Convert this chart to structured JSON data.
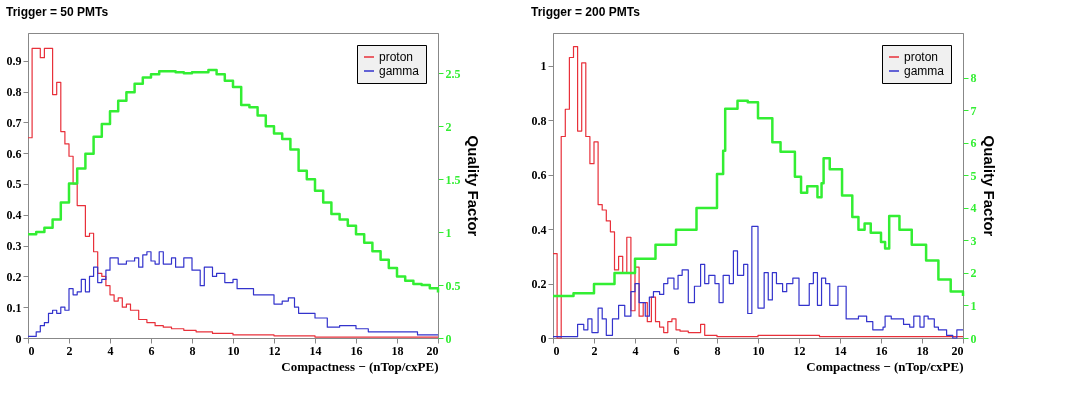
{
  "chart_data": [
    {
      "type": "step",
      "title": "Trigger =  50 PMTs",
      "xlabel": "Compactness − (nTop/cxPE)",
      "y2label": "Quality Factor",
      "legend": "top right",
      "xlim": [
        0,
        20
      ],
      "xticks": [
        0,
        2,
        4,
        6,
        8,
        10,
        12,
        14,
        16,
        18,
        20
      ],
      "ylim": [
        0,
        0.99
      ],
      "yticks": [
        0,
        0.1,
        0.2,
        0.3,
        0.4,
        0.5,
        0.6,
        0.7,
        0.8,
        0.9
      ],
      "y2lim": [
        0,
        2.88
      ],
      "y2ticks": [
        0,
        0.5,
        1,
        1.5,
        2,
        2.5
      ],
      "series": [
        {
          "name": "proton",
          "color": "#e8303a",
          "x": [
            0,
            0.2,
            0.6,
            0.8,
            1.2,
            1.4,
            1.6,
            1.8,
            2.0,
            2.2,
            2.4,
            2.8,
            3.0,
            3.2,
            3.4,
            3.6,
            3.8,
            4.0,
            4.2,
            4.4,
            4.6,
            4.8,
            5.0,
            5.4,
            5.8,
            6.2,
            6.6,
            7.0,
            7.6,
            8.2,
            9.0,
            10.0,
            12.0,
            14.0,
            20
          ],
          "values": [
            0.65,
            0.94,
            0.91,
            0.94,
            0.79,
            0.83,
            0.67,
            0.63,
            0.59,
            0.5,
            0.43,
            0.33,
            0.34,
            0.28,
            0.21,
            0.2,
            0.17,
            0.14,
            0.12,
            0.13,
            0.1,
            0.11,
            0.09,
            0.06,
            0.05,
            0.04,
            0.035,
            0.03,
            0.025,
            0.02,
            0.015,
            0.01,
            0.007,
            0.003,
            0.003
          ]
        },
        {
          "name": "gamma",
          "color": "#3333cc",
          "x": [
            0,
            0.4,
            0.6,
            0.8,
            1.0,
            1.2,
            1.4,
            1.6,
            1.8,
            2.0,
            2.2,
            2.4,
            2.6,
            2.8,
            3.0,
            3.2,
            3.4,
            3.6,
            3.8,
            4.0,
            4.4,
            4.8,
            5.2,
            5.4,
            5.6,
            5.8,
            6.0,
            6.2,
            6.4,
            6.6,
            7.0,
            7.2,
            7.6,
            8.0,
            8.4,
            8.6,
            9.0,
            9.2,
            9.6,
            10.0,
            10.2,
            11.0,
            12.0,
            12.4,
            12.7,
            13.0,
            13.2,
            14.0,
            14.6,
            15.2,
            16.0,
            16.6,
            18.0,
            19.0,
            20
          ],
          "values": [
            0.005,
            0.02,
            0.04,
            0.05,
            0.08,
            0.09,
            0.08,
            0.1,
            0.09,
            0.16,
            0.14,
            0.15,
            0.19,
            0.15,
            0.2,
            0.23,
            0.18,
            0.19,
            0.22,
            0.26,
            0.24,
            0.25,
            0.26,
            0.23,
            0.27,
            0.28,
            0.25,
            0.24,
            0.28,
            0.24,
            0.26,
            0.23,
            0.26,
            0.22,
            0.17,
            0.23,
            0.2,
            0.21,
            0.18,
            0.19,
            0.16,
            0.14,
            0.11,
            0.12,
            0.13,
            0.1,
            0.08,
            0.065,
            0.035,
            0.04,
            0.03,
            0.02,
            0.02,
            0.01,
            0.01
          ]
        },
        {
          "color": "#33ee33",
          "axis": "y2",
          "x": [
            0,
            0.4,
            0.8,
            1.2,
            1.6,
            2.0,
            2.4,
            2.8,
            3.2,
            3.6,
            4.0,
            4.4,
            4.8,
            5.2,
            5.6,
            6.0,
            6.4,
            6.8,
            7.2,
            7.6,
            8.0,
            8.4,
            8.8,
            9.2,
            9.6,
            10.0,
            10.4,
            10.8,
            11.2,
            11.6,
            12.0,
            12.4,
            12.8,
            13.2,
            13.6,
            14.0,
            14.4,
            14.8,
            15.2,
            15.6,
            16.0,
            16.4,
            16.8,
            17.2,
            17.6,
            18.0,
            18.4,
            18.8,
            19.2,
            19.6,
            20
          ],
          "values": [
            0.98,
            1.0,
            1.04,
            1.12,
            1.28,
            1.46,
            1.6,
            1.74,
            1.9,
            2.02,
            2.14,
            2.24,
            2.32,
            2.4,
            2.46,
            2.49,
            2.52,
            2.52,
            2.51,
            2.5,
            2.51,
            2.51,
            2.53,
            2.49,
            2.43,
            2.37,
            2.2,
            2.18,
            2.1,
            2.0,
            1.93,
            1.88,
            1.78,
            1.58,
            1.5,
            1.39,
            1.28,
            1.17,
            1.12,
            1.06,
            0.98,
            0.9,
            0.82,
            0.74,
            0.66,
            0.58,
            0.54,
            0.51,
            0.5,
            0.47,
            0.43
          ]
        }
      ]
    },
    {
      "type": "step",
      "title": "Trigger = 200 PMTs",
      "xlabel": "Compactness − (nTop/cxPE)",
      "y2label": "Quality Factor",
      "legend": "top right",
      "xlim": [
        0,
        20
      ],
      "xticks": [
        0,
        2,
        4,
        6,
        8,
        10,
        12,
        14,
        16,
        18,
        20
      ],
      "ylim": [
        0,
        1.12
      ],
      "yticks": [
        0,
        0.2,
        0.4,
        0.6,
        0.8,
        1
      ],
      "y2lim": [
        0,
        9.38
      ],
      "y2ticks": [
        0,
        1,
        2,
        3,
        4,
        5,
        6,
        7,
        8
      ],
      "series": [
        {
          "name": "proton",
          "color": "#e8303a",
          "x": [
            0,
            0.2,
            0.4,
            0.6,
            0.8,
            1.0,
            1.2,
            1.4,
            1.6,
            1.8,
            2.0,
            2.2,
            2.4,
            2.6,
            2.8,
            3.0,
            3.2,
            3.4,
            3.6,
            3.8,
            4.0,
            4.2,
            4.4,
            4.6,
            4.8,
            5.0,
            5.2,
            5.4,
            5.6,
            5.8,
            6.0,
            6.2,
            6.6,
            7.2,
            7.4,
            8.0,
            10.0,
            13.0,
            20
          ],
          "values": [
            0.31,
            0,
            0.74,
            0.84,
            1.03,
            1.07,
            0.76,
            1.01,
            0.74,
            0.64,
            0.72,
            0.49,
            0.47,
            0.43,
            0.39,
            0.25,
            0.3,
            0.24,
            0.37,
            0.1,
            0.26,
            0.08,
            0.13,
            0.06,
            0.15,
            0.06,
            0.04,
            0.02,
            0.06,
            0.07,
            0.03,
            0.025,
            0.02,
            0.05,
            0.01,
            0.005,
            0.01,
            0.005,
            0.005
          ]
        },
        {
          "name": "gamma",
          "color": "#3333cc",
          "x": [
            0,
            1.2,
            1.5,
            1.7,
            1.9,
            2.2,
            2.4,
            2.6,
            2.9,
            3.2,
            3.5,
            3.8,
            4.0,
            4.2,
            4.5,
            4.7,
            4.9,
            5.2,
            5.4,
            5.6,
            5.9,
            6.1,
            6.3,
            6.6,
            6.9,
            7.2,
            7.4,
            7.6,
            7.9,
            8.1,
            8.3,
            8.6,
            8.8,
            9.0,
            9.3,
            9.5,
            9.7,
            10.0,
            10.3,
            10.5,
            10.7,
            10.9,
            11.2,
            11.4,
            11.7,
            12.0,
            12.2,
            12.5,
            12.7,
            12.9,
            13.1,
            13.3,
            13.5,
            13.9,
            14.3,
            14.9,
            15.3,
            15.6,
            16.1,
            16.2,
            16.5,
            17.1,
            17.4,
            17.6,
            17.9,
            18.1,
            18.3,
            18.6,
            18.8,
            19.2,
            19.5,
            19.7,
            20
          ],
          "values": [
            0.005,
            0.05,
            0.03,
            0.07,
            0.02,
            0.11,
            0.07,
            0.01,
            0.07,
            0.12,
            0.08,
            0.17,
            0.2,
            0.13,
            0.08,
            0.15,
            0.17,
            0.16,
            0.2,
            0.22,
            0.18,
            0.23,
            0.25,
            0.13,
            0.19,
            0.27,
            0.2,
            0.23,
            0.2,
            0.13,
            0.23,
            0.2,
            0.32,
            0.23,
            0.27,
            0.09,
            0.41,
            0.11,
            0.24,
            0.14,
            0.24,
            0.2,
            0.17,
            0.2,
            0.22,
            0.12,
            0.12,
            0.2,
            0.24,
            0.12,
            0.22,
            0.2,
            0.12,
            0.19,
            0.07,
            0.08,
            0.06,
            0.03,
            0.04,
            0.08,
            0.07,
            0.05,
            0.04,
            0.08,
            0.04,
            0.08,
            0.07,
            0.04,
            0.03,
            0.01,
            0,
            0.03,
            0.03
          ]
        },
        {
          "color": "#33ee33",
          "axis": "y2",
          "x": [
            0,
            1,
            2,
            3,
            4,
            5,
            6,
            7,
            8,
            8.3,
            8.4,
            9,
            9.5,
            10,
            10.7,
            11.1,
            11.8,
            12.1,
            12.4,
            12.9,
            13.1,
            13.2,
            13.5,
            14.1,
            14.6,
            14.9,
            15.2,
            15.5,
            16.0,
            16.2,
            16.4,
            16.9,
            17.5,
            18.2,
            18.8,
            19.4,
            20
          ],
          "values": [
            1.29,
            1.38,
            1.66,
            2.0,
            2.44,
            2.87,
            3.33,
            4.0,
            5.04,
            5.76,
            7.05,
            7.3,
            7.25,
            6.76,
            6.02,
            5.73,
            4.96,
            4.47,
            4.67,
            4.33,
            4.76,
            5.53,
            5.19,
            4.38,
            3.72,
            3.33,
            3.52,
            3.24,
            2.95,
            2.75,
            3.75,
            3.33,
            2.87,
            2.38,
            1.8,
            1.43,
            1.29
          ]
        }
      ]
    }
  ]
}
